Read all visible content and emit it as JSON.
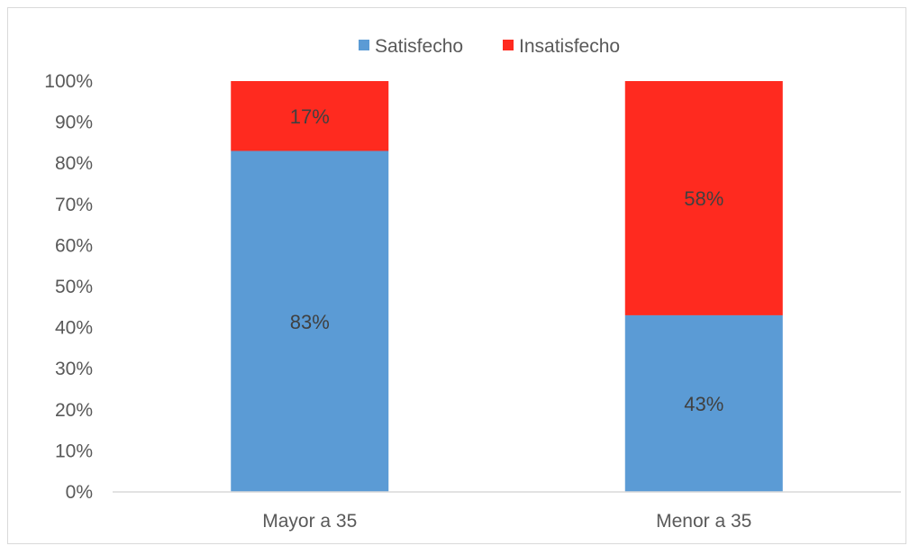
{
  "chart_data": {
    "type": "bar",
    "stacked": true,
    "percent_stacked": true,
    "categories": [
      "Mayor a 35",
      "Menor a 35"
    ],
    "series": [
      {
        "name": "Satisfecho",
        "values": [
          0.83,
          0.43
        ],
        "labels": [
          "83%",
          "43%"
        ],
        "color": "#5b9bd5"
      },
      {
        "name": "Insatisfecho",
        "values": [
          0.17,
          0.58
        ],
        "labels": [
          "17%",
          "58%"
        ],
        "color": "#ff2a1f"
      }
    ],
    "ylim": [
      0,
      1
    ],
    "y_ticks": [
      "0%",
      "10%",
      "20%",
      "30%",
      "40%",
      "50%",
      "60%",
      "70%",
      "80%",
      "90%",
      "100%"
    ],
    "grid": false,
    "legend_position": "top"
  }
}
